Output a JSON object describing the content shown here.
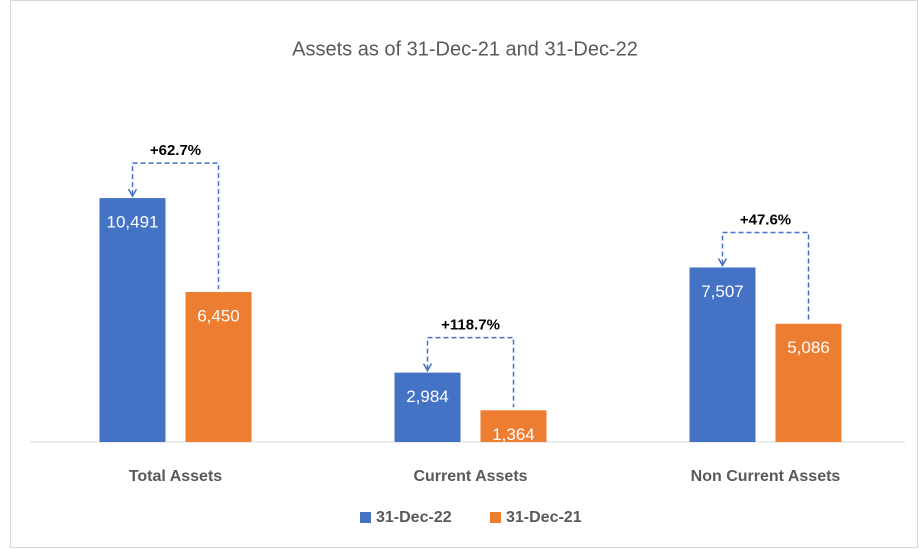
{
  "chart_data": {
    "type": "bar",
    "title": "Assets as of 31-Dec-21 and  31-Dec-22",
    "categories": [
      "Total Assets",
      "Current Assets",
      "Non Current Assets"
    ],
    "series": [
      {
        "name": "31-Dec-22",
        "color": "#4472c4",
        "values": [
          10491,
          2984,
          7507
        ],
        "value_labels": [
          "10,491",
          "2,984",
          "7,507"
        ]
      },
      {
        "name": "31-Dec-21",
        "color": "#ed7d31",
        "values": [
          6450,
          1364,
          5086
        ],
        "value_labels": [
          "6,450",
          "1,364",
          "5,086"
        ]
      }
    ],
    "annotations": [
      "+62.7%",
      "+118.7%",
      "+47.6%"
    ],
    "ylim": [
      0,
      12000
    ]
  }
}
